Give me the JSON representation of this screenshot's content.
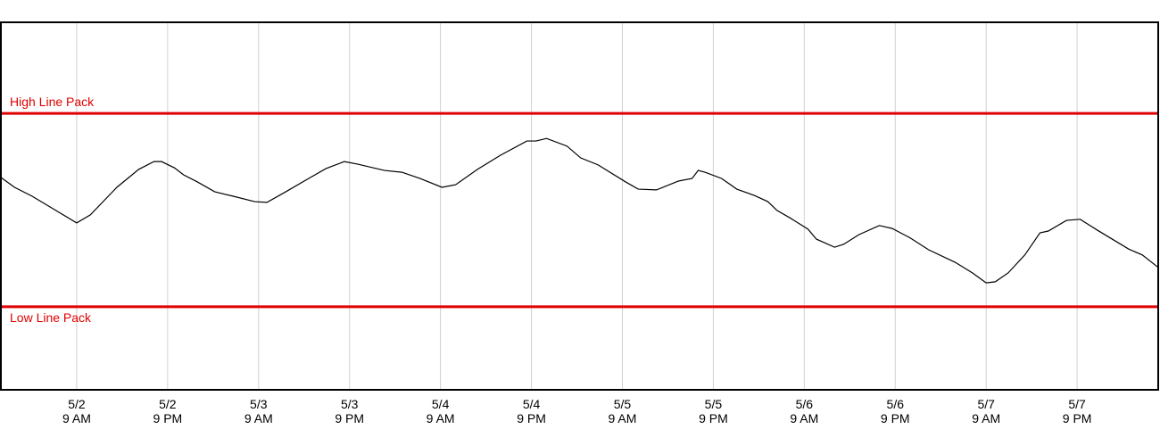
{
  "chart_data": {
    "type": "line",
    "x": [
      -10,
      -8.2,
      -5.9,
      -2.9,
      0,
      1.8,
      5.3,
      8.2,
      10.2,
      11.2,
      12.9,
      14.1,
      15.9,
      18.2,
      20.6,
      23.5,
      25.1,
      27.6,
      30.6,
      32.9,
      35.3,
      37.1,
      40.6,
      42.9,
      45.3,
      48.2,
      50,
      52.9,
      55.9,
      59.4,
      60.6,
      62,
      64.7,
      66.5,
      68.8,
      72.4,
      74.1,
      76.5,
      79.4,
      81.2,
      82,
      82.9,
      85.1,
      87.1,
      89.4,
      91.2,
      92.4,
      94.1,
      96.5,
      97.6,
      100,
      101.2,
      103.2,
      105.9,
      107.6,
      110,
      112.4,
      115.9,
      118.2,
      120,
      121.2,
      122.9,
      125.1,
      127.1,
      128.2,
      130.6,
      132.4,
      134.7,
      138.8,
      140.6,
      142.7
    ],
    "values": [
      57.8,
      55.1,
      52.7,
      49.0,
      45.4,
      47.6,
      55.1,
      60.0,
      62.1,
      62.1,
      60.4,
      58.5,
      56.6,
      53.9,
      52.7,
      51.2,
      51.0,
      53.9,
      57.5,
      60.2,
      62.1,
      61.4,
      59.7,
      59.2,
      57.5,
      55.1,
      55.8,
      60.0,
      63.8,
      67.7,
      67.7,
      68.4,
      66.3,
      63.1,
      61.2,
      56.6,
      54.6,
      54.4,
      56.8,
      57.5,
      59.7,
      59.2,
      57.5,
      54.6,
      52.9,
      51.2,
      48.8,
      46.8,
      43.7,
      41.0,
      38.8,
      39.6,
      42.2,
      44.7,
      43.9,
      41.3,
      38.1,
      34.7,
      31.8,
      29.1,
      29.4,
      31.8,
      36.7,
      42.7,
      43.2,
      46.1,
      46.4,
      43.4,
      38.3,
      36.7,
      33.3
    ],
    "color": "#000000",
    "xlim": [
      -10,
      142.7
    ],
    "ylim": [
      0,
      100
    ],
    "xticks": [
      {
        "value": 0,
        "label": "5/2\n9 AM"
      },
      {
        "value": 12,
        "label": "5/2\n9 PM"
      },
      {
        "value": 24,
        "label": "5/3\n9 AM"
      },
      {
        "value": 36,
        "label": "5/3\n9 PM"
      },
      {
        "value": 48,
        "label": "5/4\n9 AM"
      },
      {
        "value": 60,
        "label": "5/4\n9 PM"
      },
      {
        "value": 72,
        "label": "5/5\n9 AM"
      },
      {
        "value": 84,
        "label": "5/5\n9 PM"
      },
      {
        "value": 96,
        "label": "5/6\n9 AM"
      },
      {
        "value": 108,
        "label": "5/6\n9 PM"
      },
      {
        "value": 120,
        "label": "5/7\n9 AM"
      },
      {
        "value": 132,
        "label": "5/7\n9 PM"
      }
    ],
    "grid": true,
    "reference_lines": [
      {
        "label": "High Line Pack",
        "value": 75.2,
        "color": "#e00000",
        "label_side": "above"
      },
      {
        "label": "Low Line Pack",
        "value": 22.6,
        "color": "#e00000",
        "label_side": "below"
      }
    ]
  }
}
